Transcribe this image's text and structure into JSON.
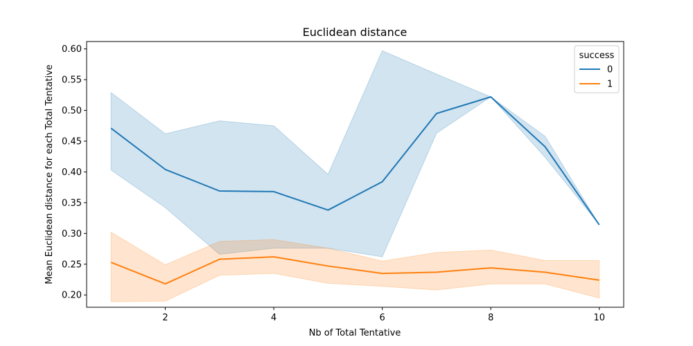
{
  "chart_data": {
    "type": "line",
    "title": "Euclidean distance",
    "xlabel": "Nb of Total Tentative",
    "ylabel": "Mean Euclidean distance for each Total Tentative",
    "xlim": [
      0.55,
      10.45
    ],
    "ylim": [
      0.18,
      0.612
    ],
    "xticks": [
      2,
      4,
      6,
      8,
      10
    ],
    "xtick_labels": [
      "2",
      "4",
      "6",
      "8",
      "10"
    ],
    "yticks": [
      0.2,
      0.25,
      0.3,
      0.35,
      0.4,
      0.45,
      0.5,
      0.55,
      0.6
    ],
    "ytick_labels": [
      "0.20",
      "0.25",
      "0.30",
      "0.35",
      "0.40",
      "0.45",
      "0.50",
      "0.55",
      "0.60"
    ],
    "grid": false,
    "legend": {
      "title": "success",
      "placement": "top-right"
    },
    "series": [
      {
        "name": "0",
        "color": "#1f77b4",
        "x": [
          1,
          2,
          3,
          4,
          5,
          6,
          7,
          8,
          9,
          10
        ],
        "y": [
          0.471,
          0.404,
          0.369,
          0.368,
          0.338,
          0.384,
          0.495,
          0.522,
          0.441,
          0.314
        ],
        "ci_lower": [
          0.403,
          0.342,
          0.266,
          0.276,
          0.276,
          0.262,
          0.463,
          0.522,
          0.424,
          0.314
        ],
        "ci_upper": [
          0.529,
          0.462,
          0.483,
          0.475,
          0.396,
          0.597,
          0.559,
          0.522,
          0.458,
          0.314
        ]
      },
      {
        "name": "1",
        "color": "#ff7f0e",
        "x": [
          1,
          2,
          3,
          4,
          5,
          6,
          7,
          8,
          9,
          10
        ],
        "y": [
          0.253,
          0.218,
          0.258,
          0.262,
          0.247,
          0.235,
          0.237,
          0.244,
          0.237,
          0.224
        ],
        "ci_lower": [
          0.189,
          0.19,
          0.232,
          0.235,
          0.219,
          0.214,
          0.208,
          0.218,
          0.218,
          0.195
        ],
        "ci_upper": [
          0.302,
          0.249,
          0.287,
          0.29,
          0.276,
          0.255,
          0.269,
          0.273,
          0.256,
          0.256
        ]
      }
    ]
  }
}
